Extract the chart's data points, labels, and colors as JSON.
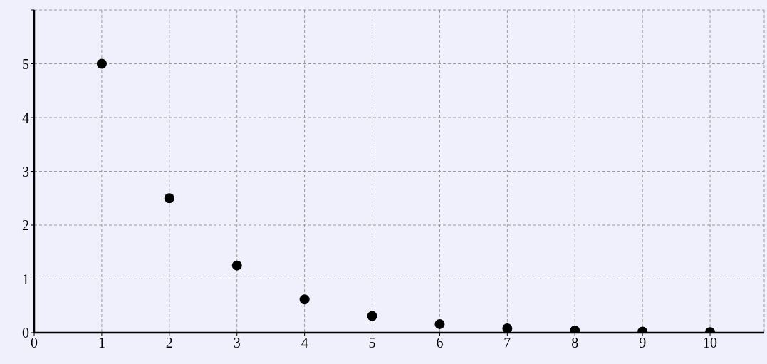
{
  "chart_data": {
    "type": "scatter",
    "x": [
      1,
      2,
      3,
      4,
      5,
      6,
      7,
      8,
      9,
      10
    ],
    "values": [
      5,
      2.5,
      1.25,
      0.62,
      0.31,
      0.16,
      0.08,
      0.04,
      0.02,
      0.01
    ],
    "color": "#000000",
    "marker": "circle",
    "xlim": [
      0,
      10.8
    ],
    "ylim": [
      0,
      6
    ],
    "xticks": [
      0,
      1,
      2,
      3,
      4,
      5,
      6,
      7,
      8,
      9,
      10
    ],
    "yticks": [
      0,
      1,
      2,
      3,
      4,
      5,
      {
        "value": 6,
        "label": null
      }
    ],
    "grid": true
  }
}
